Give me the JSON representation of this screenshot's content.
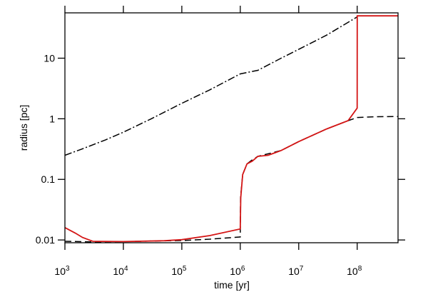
{
  "chart_data": {
    "type": "line",
    "xlabel": "time  [yr]",
    "ylabel": "radius [pc]",
    "xscale": "log",
    "yscale": "log",
    "xlim": [
      1000,
      500000000
    ],
    "ylim": [
      0.009,
      56
    ],
    "grid": false,
    "legend": "none",
    "x_ticks": [
      {
        "base": "10",
        "exp": "3",
        "value": 1000
      },
      {
        "base": "10",
        "exp": "4",
        "value": 10000
      },
      {
        "base": "10",
        "exp": "5",
        "value": 100000
      },
      {
        "base": "10",
        "exp": "6",
        "value": 1000000
      },
      {
        "base": "10",
        "exp": "7",
        "value": 10000000
      },
      {
        "base": "10",
        "exp": "8",
        "value": 100000000
      }
    ],
    "y_ticks": [
      {
        "label": "0.01",
        "value": 0.01
      },
      {
        "label": "0.1",
        "value": 0.1
      },
      {
        "label": "1",
        "value": 1
      },
      {
        "label": "10",
        "value": 10
      }
    ],
    "series": [
      {
        "style": "dash-dot",
        "color": "#000000",
        "points": [
          [
            1000,
            0.25
          ],
          [
            2000,
            0.32
          ],
          [
            5000,
            0.45
          ],
          [
            10000,
            0.6
          ],
          [
            30000,
            1.0
          ],
          [
            100000,
            1.8
          ],
          [
            300000,
            3.0
          ],
          [
            1000000,
            5.5
          ],
          [
            2000000,
            6.3
          ],
          [
            5000000,
            10
          ],
          [
            10000000,
            14
          ],
          [
            30000000,
            24
          ],
          [
            100000000,
            48
          ]
        ]
      },
      {
        "style": "dashed",
        "color": "#000000",
        "points": [
          [
            1000,
            0.0095
          ],
          [
            3000,
            0.0093
          ],
          [
            10000,
            0.0094
          ],
          [
            100000,
            0.0098
          ],
          [
            300000,
            0.0103
          ],
          [
            1000000,
            0.0112
          ],
          [
            1010000,
            0.05
          ],
          [
            1100000,
            0.12
          ],
          [
            1300000,
            0.18
          ],
          [
            1600000,
            0.21
          ],
          [
            2000000,
            0.24
          ],
          [
            5000000,
            0.3
          ],
          [
            10000000,
            0.42
          ],
          [
            30000000,
            0.68
          ],
          [
            70000000,
            0.93
          ],
          [
            100000000,
            1.05
          ],
          [
            200000000,
            1.08
          ],
          [
            500000000,
            1.09
          ]
        ]
      },
      {
        "style": "solid",
        "color": "#d41515",
        "points": [
          [
            1000,
            0.016
          ],
          [
            1500,
            0.013
          ],
          [
            2000,
            0.011
          ],
          [
            3000,
            0.0095
          ],
          [
            10000,
            0.0094
          ],
          [
            50000,
            0.0097
          ],
          [
            100000,
            0.0101
          ],
          [
            300000,
            0.0118
          ],
          [
            1000000,
            0.0152
          ],
          [
            1020000,
            0.05
          ],
          [
            1100000,
            0.12
          ],
          [
            1300000,
            0.18
          ],
          [
            1600000,
            0.2
          ],
          [
            2000000,
            0.24
          ],
          [
            3000000,
            0.25
          ],
          [
            5000000,
            0.3
          ],
          [
            10000000,
            0.42
          ],
          [
            30000000,
            0.68
          ],
          [
            70000000,
            0.93
          ],
          [
            100000000,
            1.5
          ],
          [
            100100000,
            50
          ],
          [
            500000000,
            50
          ]
        ]
      }
    ]
  }
}
